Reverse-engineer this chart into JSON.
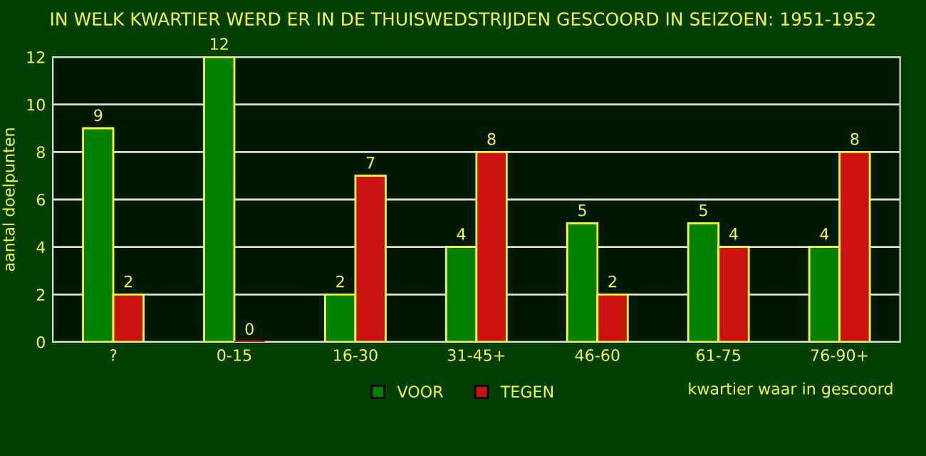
{
  "chart_data": {
    "type": "bar",
    "title": "IN WELK KWARTIER WERD ER IN DE THUISWEDSTRIJDEN GESCOORD IN SEIZOEN: 1951-1952",
    "xlabel": "kwartier waar in gescoord",
    "ylabel": "aantal doelpunten",
    "categories": [
      "?",
      "0-15",
      "16-30",
      "31-45+",
      "46-60",
      "61-75",
      "76-90+"
    ],
    "series": [
      {
        "name": "VOOR",
        "color": "#008000",
        "values": [
          9,
          12,
          2,
          4,
          5,
          5,
          4
        ]
      },
      {
        "name": "TEGEN",
        "color": "#cc1111",
        "values": [
          2,
          0,
          7,
          8,
          2,
          4,
          8
        ]
      }
    ],
    "ylim": [
      0,
      12
    ],
    "yticks": [
      0,
      2,
      4,
      6,
      8,
      10,
      12
    ],
    "grid": "y",
    "legend": "bottom",
    "data_labels": true
  }
}
